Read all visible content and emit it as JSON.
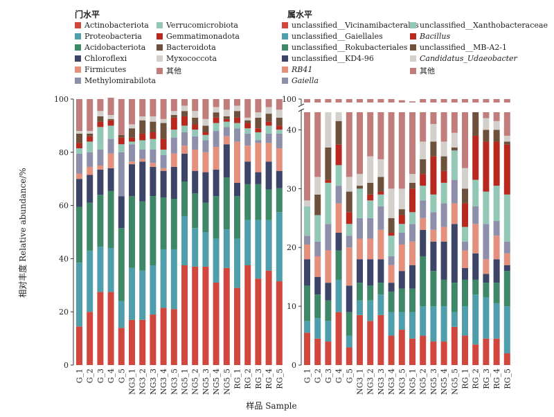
{
  "chart_data": [
    {
      "type": "bar",
      "stacked": true,
      "title": "门水平",
      "ylim": [
        0,
        100
      ],
      "yticks": [
        0,
        20,
        40,
        60,
        80,
        100
      ],
      "categories": [
        "G_1",
        "G_2",
        "G_3",
        "G_4",
        "G_5",
        "NG3_1",
        "NG3_2",
        "NG3_3",
        "NG3_4",
        "NG3_5",
        "NG5_1",
        "NG5_2",
        "NG5_3",
        "NG5_4",
        "NG5_5",
        "RG_1",
        "RG_2",
        "RG_3",
        "RG_4",
        "RG_5"
      ],
      "series": [
        {
          "name": "Actinobacteriota",
          "color": "#d0483d",
          "italic": false,
          "values": [
            14.5,
            20,
            27.5,
            27.5,
            14,
            17,
            17,
            19,
            21.5,
            21,
            37.5,
            37,
            37,
            31,
            36.5,
            29,
            37.5,
            32.5,
            35.5,
            31.5
          ]
        },
        {
          "name": "Proteobacteria",
          "color": "#4e9eab",
          "italic": false,
          "values": [
            24,
            23,
            17,
            16.5,
            10,
            19.5,
            18.5,
            18.5,
            22,
            22.5,
            18.5,
            14.5,
            13,
            16.5,
            14.5,
            18.5,
            17,
            22,
            19,
            26
          ]
        },
        {
          "name": "Acidobacteriota",
          "color": "#3f8867",
          "italic": false,
          "values": [
            21,
            18,
            19.5,
            21.5,
            27.5,
            27,
            26,
            26,
            19.5,
            19,
            13,
            13,
            11,
            16,
            19.5,
            16,
            13.5,
            13.5,
            11.5,
            9
          ]
        },
        {
          "name": "Chloroflexi",
          "color": "#3c4468",
          "italic": false,
          "values": [
            10.5,
            10.5,
            9.5,
            8.5,
            12,
            12,
            15,
            11,
            10,
            12,
            10.5,
            8.5,
            11.5,
            10,
            12.5,
            5,
            8.5,
            4.5,
            10.5,
            6.5
          ]
        },
        {
          "name": "Firmicutes",
          "color": "#e5907d",
          "italic": false,
          "values": [
            2,
            3,
            1.5,
            5.5,
            0,
            1,
            1,
            1.5,
            1,
            5,
            3,
            8,
            7.5,
            8.5,
            3,
            15.5,
            6,
            11,
            7,
            8.5
          ]
        },
        {
          "name": "Methylomirabilota",
          "color": "#8e8faa",
          "italic": false,
          "values": [
            7.5,
            5.5,
            6,
            5.5,
            16.5,
            6.5,
            3.5,
            5,
            5,
            6,
            5,
            5,
            4.5,
            6,
            3.5,
            5,
            4.5,
            1,
            3.5,
            5.5
          ]
        },
        {
          "name": "Verrucomicrobiota",
          "color": "#93c8b6",
          "italic": false,
          "values": [
            2,
            4,
            8.5,
            5,
            3,
            1,
            3.5,
            4,
            2,
            3,
            2.5,
            2.5,
            2,
            3,
            2,
            2,
            2,
            3,
            3,
            1.5
          ]
        },
        {
          "name": "Gemmatimonadota",
          "color": "#b8281f",
          "italic": false,
          "values": [
            2,
            2,
            2,
            2,
            2.5,
            1.5,
            2.5,
            2.5,
            4,
            4.5,
            3.5,
            2,
            1,
            2,
            1,
            2,
            2,
            1.5,
            1.5,
            1.5
          ]
        },
        {
          "name": "Bacteroidota",
          "color": "#6d513c",
          "italic": false,
          "values": [
            3.5,
            1,
            2,
            0.5,
            1,
            3.5,
            5,
            4,
            6,
            1,
            2,
            2.5,
            2.5,
            2,
            1,
            2.5,
            1,
            4,
            3,
            3
          ]
        },
        {
          "name": "Myxococcota",
          "color": "#d3cfcb",
          "italic": false,
          "values": [
            1,
            1,
            2,
            1.5,
            0,
            1.5,
            1.5,
            2,
            1.5,
            1.5,
            2,
            2.5,
            2.5,
            2,
            2.5,
            2,
            1,
            2,
            2.5,
            3
          ]
        },
        {
          "name": "其他",
          "color": "#c17d7b",
          "italic": false,
          "values": [
            12,
            12,
            4.5,
            6.5,
            13.5,
            9.5,
            6.5,
            6.5,
            7.5,
            4.5,
            2.5,
            4.5,
            7.5,
            3,
            4,
            2.5,
            7,
            5,
            3,
            4
          ]
        }
      ]
    },
    {
      "type": "bar",
      "stacked": true,
      "title": "属水平",
      "ylim": [
        0,
        100
      ],
      "yticks": [
        0,
        10,
        20,
        30,
        40,
        100
      ],
      "axis_break": [
        43,
        98.5
      ],
      "categories": [
        "G_1",
        "G_2",
        "G_3",
        "G_4",
        "G_5",
        "NG3_1",
        "NG3_2",
        "NG3_3",
        "NG3_4",
        "NG3_5",
        "NG5_1",
        "NG5_2",
        "NG5_3",
        "NG5_4",
        "NG5_5",
        "RG_1",
        "RG_2",
        "RG_3",
        "RG_4",
        "RG_5"
      ],
      "series": [
        {
          "name": "unclassified__Vicinamibacterales",
          "color": "#d0483d",
          "italic": false,
          "values": [
            5.5,
            4.5,
            4,
            9,
            3,
            8.5,
            7.5,
            8.5,
            5,
            6,
            4.5,
            5,
            4,
            4,
            6.5,
            5,
            3.5,
            4.5,
            4.5,
            2
          ]
        },
        {
          "name": "unclassified__Gaiellales",
          "color": "#4e9eab",
          "italic": false,
          "values": [
            2,
            3.5,
            3.5,
            5.5,
            2,
            2.5,
            3.5,
            3.5,
            4,
            3,
            4.5,
            5,
            6,
            6,
            2.5,
            5,
            8.5,
            7,
            6,
            8
          ]
        },
        {
          "name": "unclassified__Rokubacteriales",
          "color": "#3f8867",
          "italic": false,
          "values": [
            6,
            4,
            3.5,
            5,
            4,
            3,
            2.5,
            2,
            3.5,
            4,
            4,
            8.5,
            6,
            4.5,
            5,
            4.5,
            2.5,
            2.5,
            3.5,
            6
          ]
        },
        {
          "name": "unclassified__KD4-96",
          "color": "#3c4468",
          "italic": false,
          "values": [
            4.5,
            3,
            3,
            3,
            4.5,
            4,
            4.5,
            4,
            1.5,
            3,
            4,
            4.5,
            5,
            6.5,
            10,
            2,
            4.5,
            1.5,
            4,
            1
          ]
        },
        {
          "name": "RB41",
          "color": "#e5907d",
          "italic": true,
          "values": [
            2.5,
            3.5,
            5.5,
            5,
            6.5,
            3.5,
            3.5,
            5,
            3,
            4.5,
            4,
            2,
            2,
            2.5,
            3.5,
            3,
            5,
            2.5,
            4,
            2
          ]
        },
        {
          "name": "Gaiella",
          "color": "#8e8faa",
          "italic": true,
          "values": [
            1.5,
            2.5,
            4.5,
            3,
            2,
            3.5,
            3.5,
            4,
            1.5,
            2,
            3,
            3,
            3,
            4,
            4,
            1.5,
            3,
            6,
            2.5,
            2
          ]
        },
        {
          "name": "unclassified__Xanthobacteraceae",
          "color": "#93c8b6",
          "italic": false,
          "values": [
            5,
            4.5,
            7,
            3.5,
            2,
            5,
            3,
            2,
            3.5,
            1.5,
            2,
            2.5,
            3,
            3.5,
            5,
            2.5,
            4.5,
            5.5,
            6,
            8
          ]
        },
        {
          "name": "Bacillus",
          "color": "#b8281f",
          "italic": true,
          "values": [
            0,
            0,
            0.5,
            3.5,
            2,
            0,
            1,
            0.5,
            0.5,
            1.5,
            4,
            2,
            6.5,
            2,
            0,
            4,
            7.5,
            8.5,
            7.5,
            8.5
          ]
        },
        {
          "name": "unclassified__MB-A2-1",
          "color": "#6d513c",
          "italic": false,
          "values": [
            0,
            3.5,
            5.5,
            4,
            3.5,
            0.5,
            2,
            2.5,
            2.5,
            1,
            1,
            2.5,
            2.5,
            2.5,
            0.5,
            2.5,
            4,
            2,
            2,
            0.5
          ]
        },
        {
          "name": "Candidatus_Udaeobacter",
          "color": "#d3cfcb",
          "italic": true,
          "values": [
            1,
            3,
            8,
            3.5,
            2.5,
            2,
            4.5,
            3,
            5,
            3.5,
            1.5,
            3,
            3,
            2.5,
            2.5,
            3.5,
            3,
            2,
            1.5,
            1
          ]
        },
        {
          "name": "其他",
          "color": "#c17d7b",
          "italic": false,
          "values": [
            72,
            68,
            55,
            55,
            68,
            67.5,
            64.5,
            65,
            70,
            69.5,
            66.5,
            62,
            59,
            62,
            60.5,
            66.5,
            54,
            58,
            58.5,
            61
          ]
        }
      ]
    }
  ],
  "legend_title_phylum": "门水平",
  "legend_title_genus": "属水平",
  "y_axis_label": "相对丰度 Relative abundance/%",
  "x_axis_label": "样品 Sample"
}
